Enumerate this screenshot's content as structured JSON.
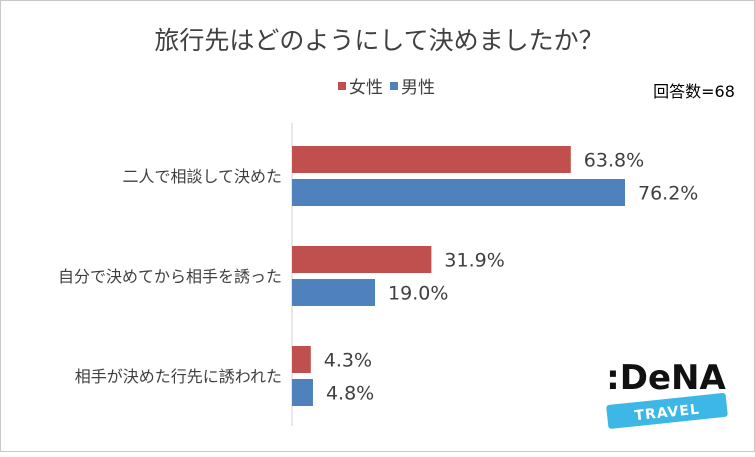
{
  "chart_data": {
    "type": "bar",
    "orientation": "horizontal",
    "title": "旅行先はどのようにして決めましたか？",
    "note": "回答数=68",
    "legend_position": "top",
    "categories": [
      "二人で相談して決めた",
      "自分で決めてから相手を誘った",
      "相手が決めた行先に誘われた"
    ],
    "series": [
      {
        "name": "女性",
        "color": "#c0504d",
        "values": [
          63.8,
          31.9,
          4.3
        ],
        "labels": [
          "63.8%",
          "31.9%",
          "4.3%"
        ]
      },
      {
        "name": "男性",
        "color": "#4f81bd",
        "values": [
          76.2,
          19.0,
          4.8
        ],
        "labels": [
          "76.2%",
          "19.0%",
          "4.8%"
        ]
      }
    ],
    "xlim": [
      0,
      100
    ],
    "grid": false
  },
  "logo": {
    "brand": ":DeNA",
    "sub": "TRAVEL",
    "band_color": "#3cb7e6"
  }
}
